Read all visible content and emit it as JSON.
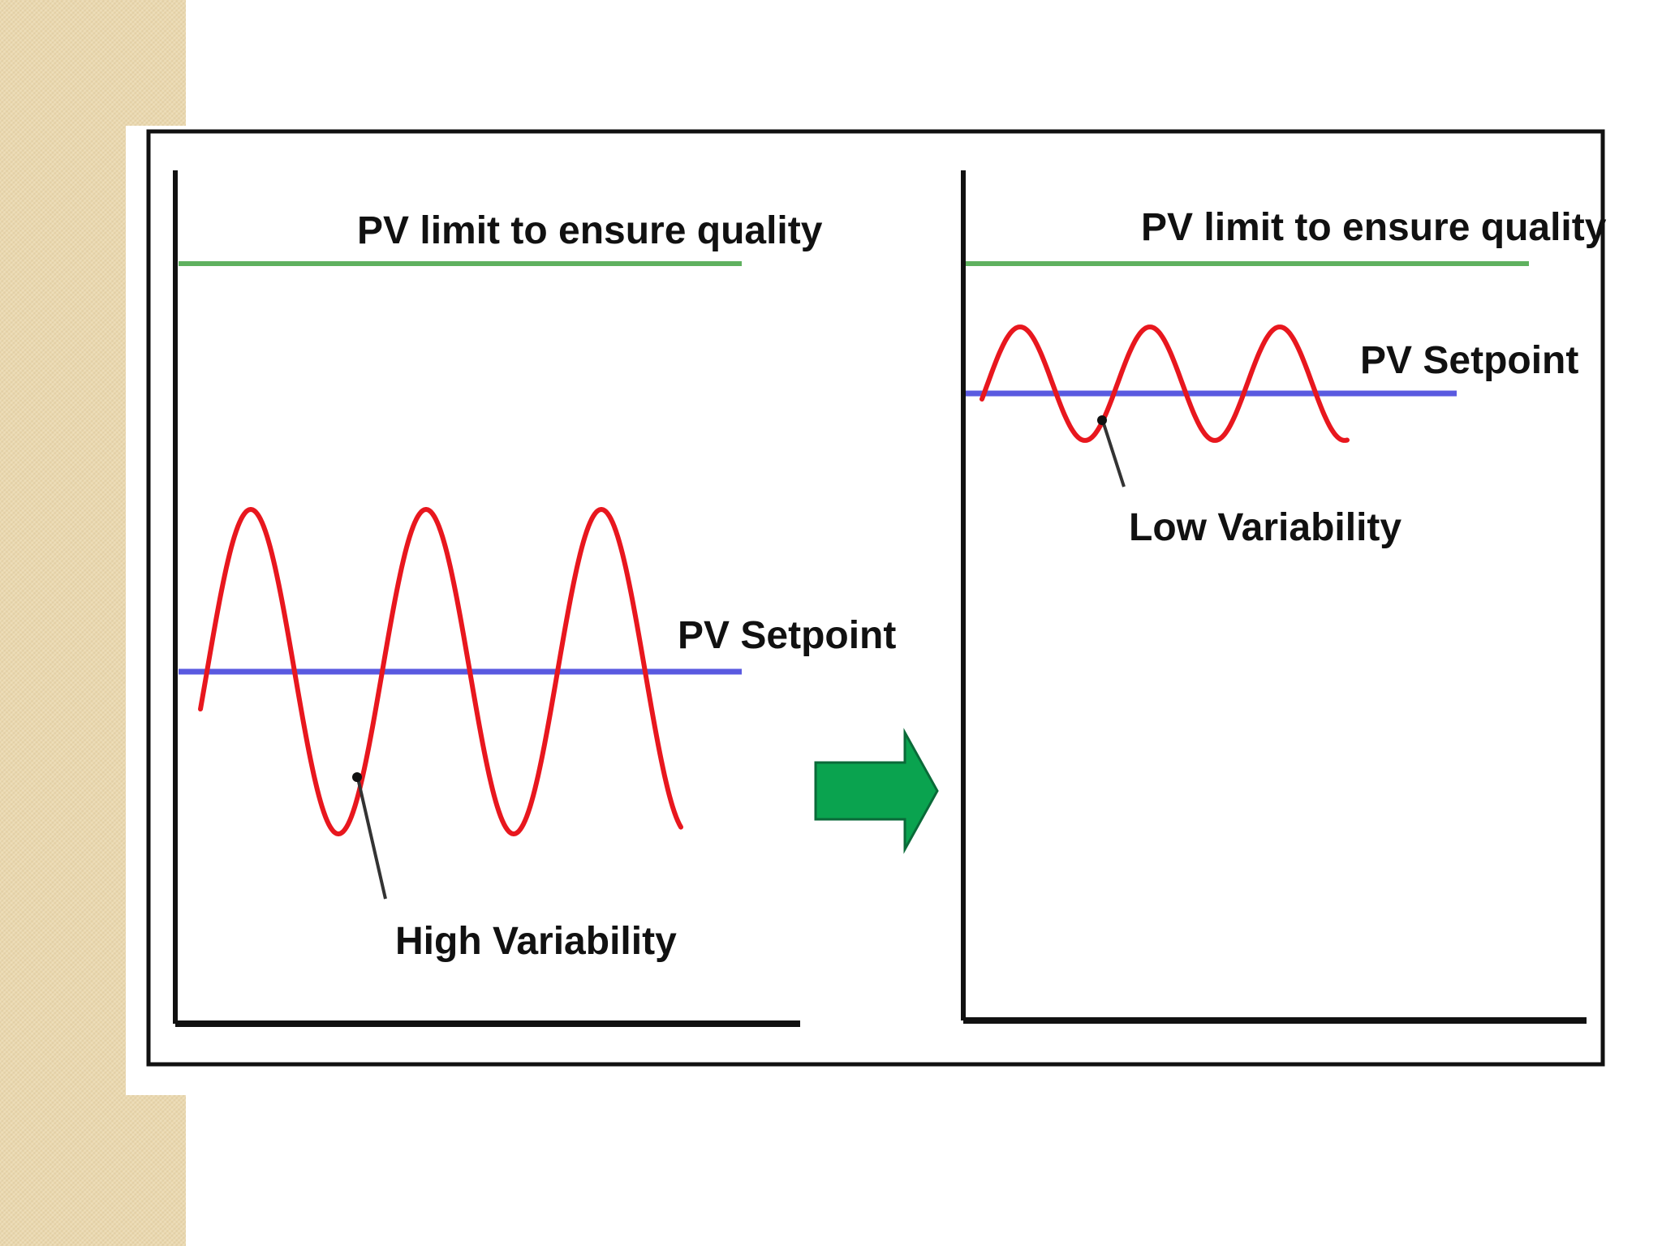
{
  "panels": [
    {
      "limit_label": "PV limit to ensure quality",
      "setpoint_label": "PV Setpoint",
      "variability_label": "High Variability"
    },
    {
      "limit_label": "PV limit to ensure quality",
      "setpoint_label": "PV Setpoint",
      "variability_label": "Low Variability"
    }
  ],
  "colors": {
    "background_band": "#ebd9b0",
    "limit_line": "#5fb15f",
    "setpoint_line": "#5a5ae0",
    "wave": "#e8171e",
    "arrow": "#0aa34f",
    "axes": "#111111"
  }
}
